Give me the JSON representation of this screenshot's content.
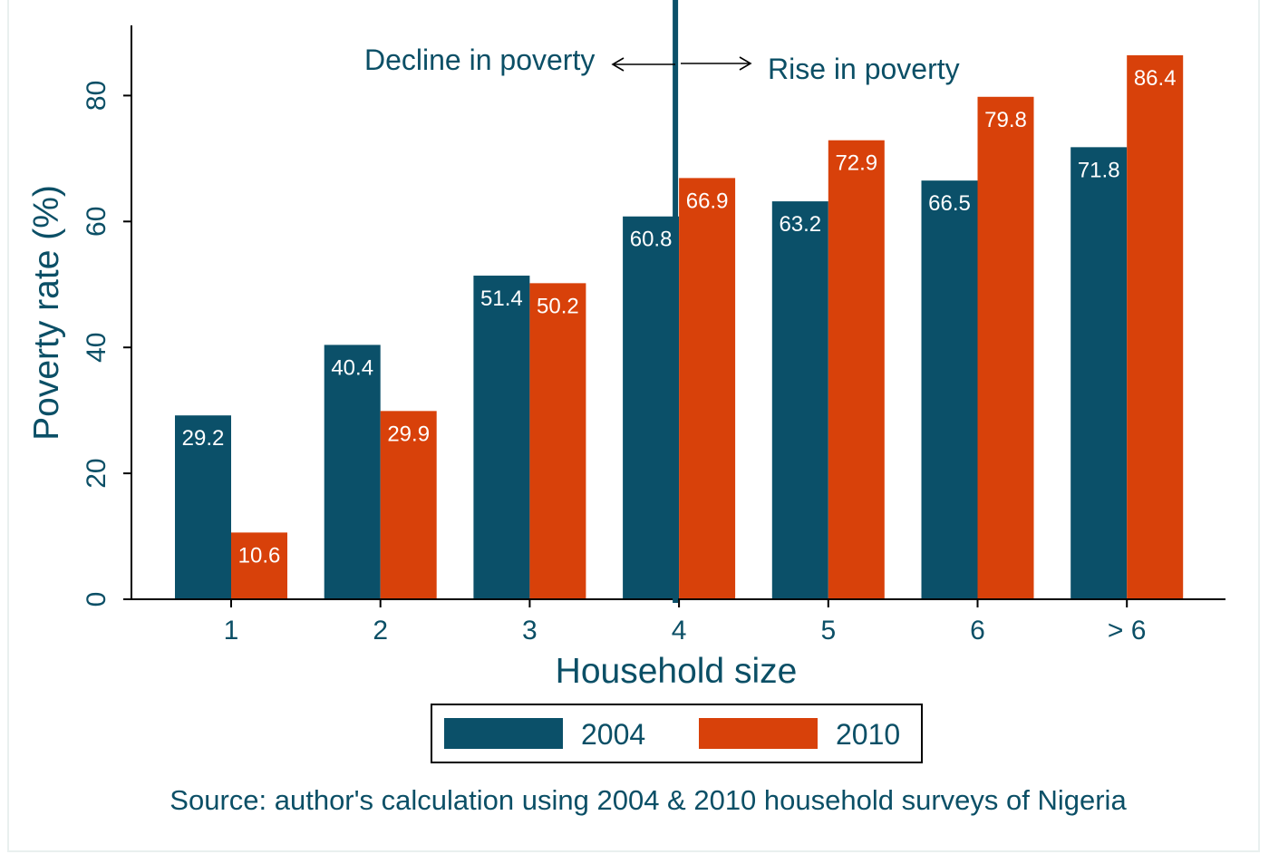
{
  "chart_data": {
    "type": "bar",
    "title": "",
    "xlabel": "Household size",
    "ylabel": "Poverty rate (%)",
    "categories": [
      "1",
      "2",
      "3",
      "4",
      "5",
      "6",
      "> 6"
    ],
    "series": [
      {
        "name": "2004",
        "color": "#0b5069",
        "values": [
          29.2,
          40.4,
          51.4,
          60.8,
          63.2,
          66.5,
          71.8
        ]
      },
      {
        "name": "2010",
        "color": "#d8410a",
        "values": [
          10.6,
          29.9,
          50.2,
          66.9,
          72.9,
          79.8,
          86.4
        ]
      }
    ],
    "data_labels": [
      [
        "29.2",
        "40.4",
        "51.4",
        "60.8",
        "63.2",
        "66.5",
        "71.8"
      ],
      [
        "10.6",
        "29.9",
        "50.2",
        "66.9",
        "72.9",
        "79.8",
        "86.4"
      ]
    ],
    "yticks": [
      "0",
      "20",
      "40",
      "60",
      "80"
    ],
    "ylim": [
      0,
      91
    ],
    "grid": false,
    "legend_position": "bottom",
    "annotations": {
      "left": "Decline in poverty",
      "right": "Rise in poverty",
      "divider_category": "4"
    },
    "note": "Source: author's calculation using 2004 & 2010 household surveys of Nigeria"
  }
}
